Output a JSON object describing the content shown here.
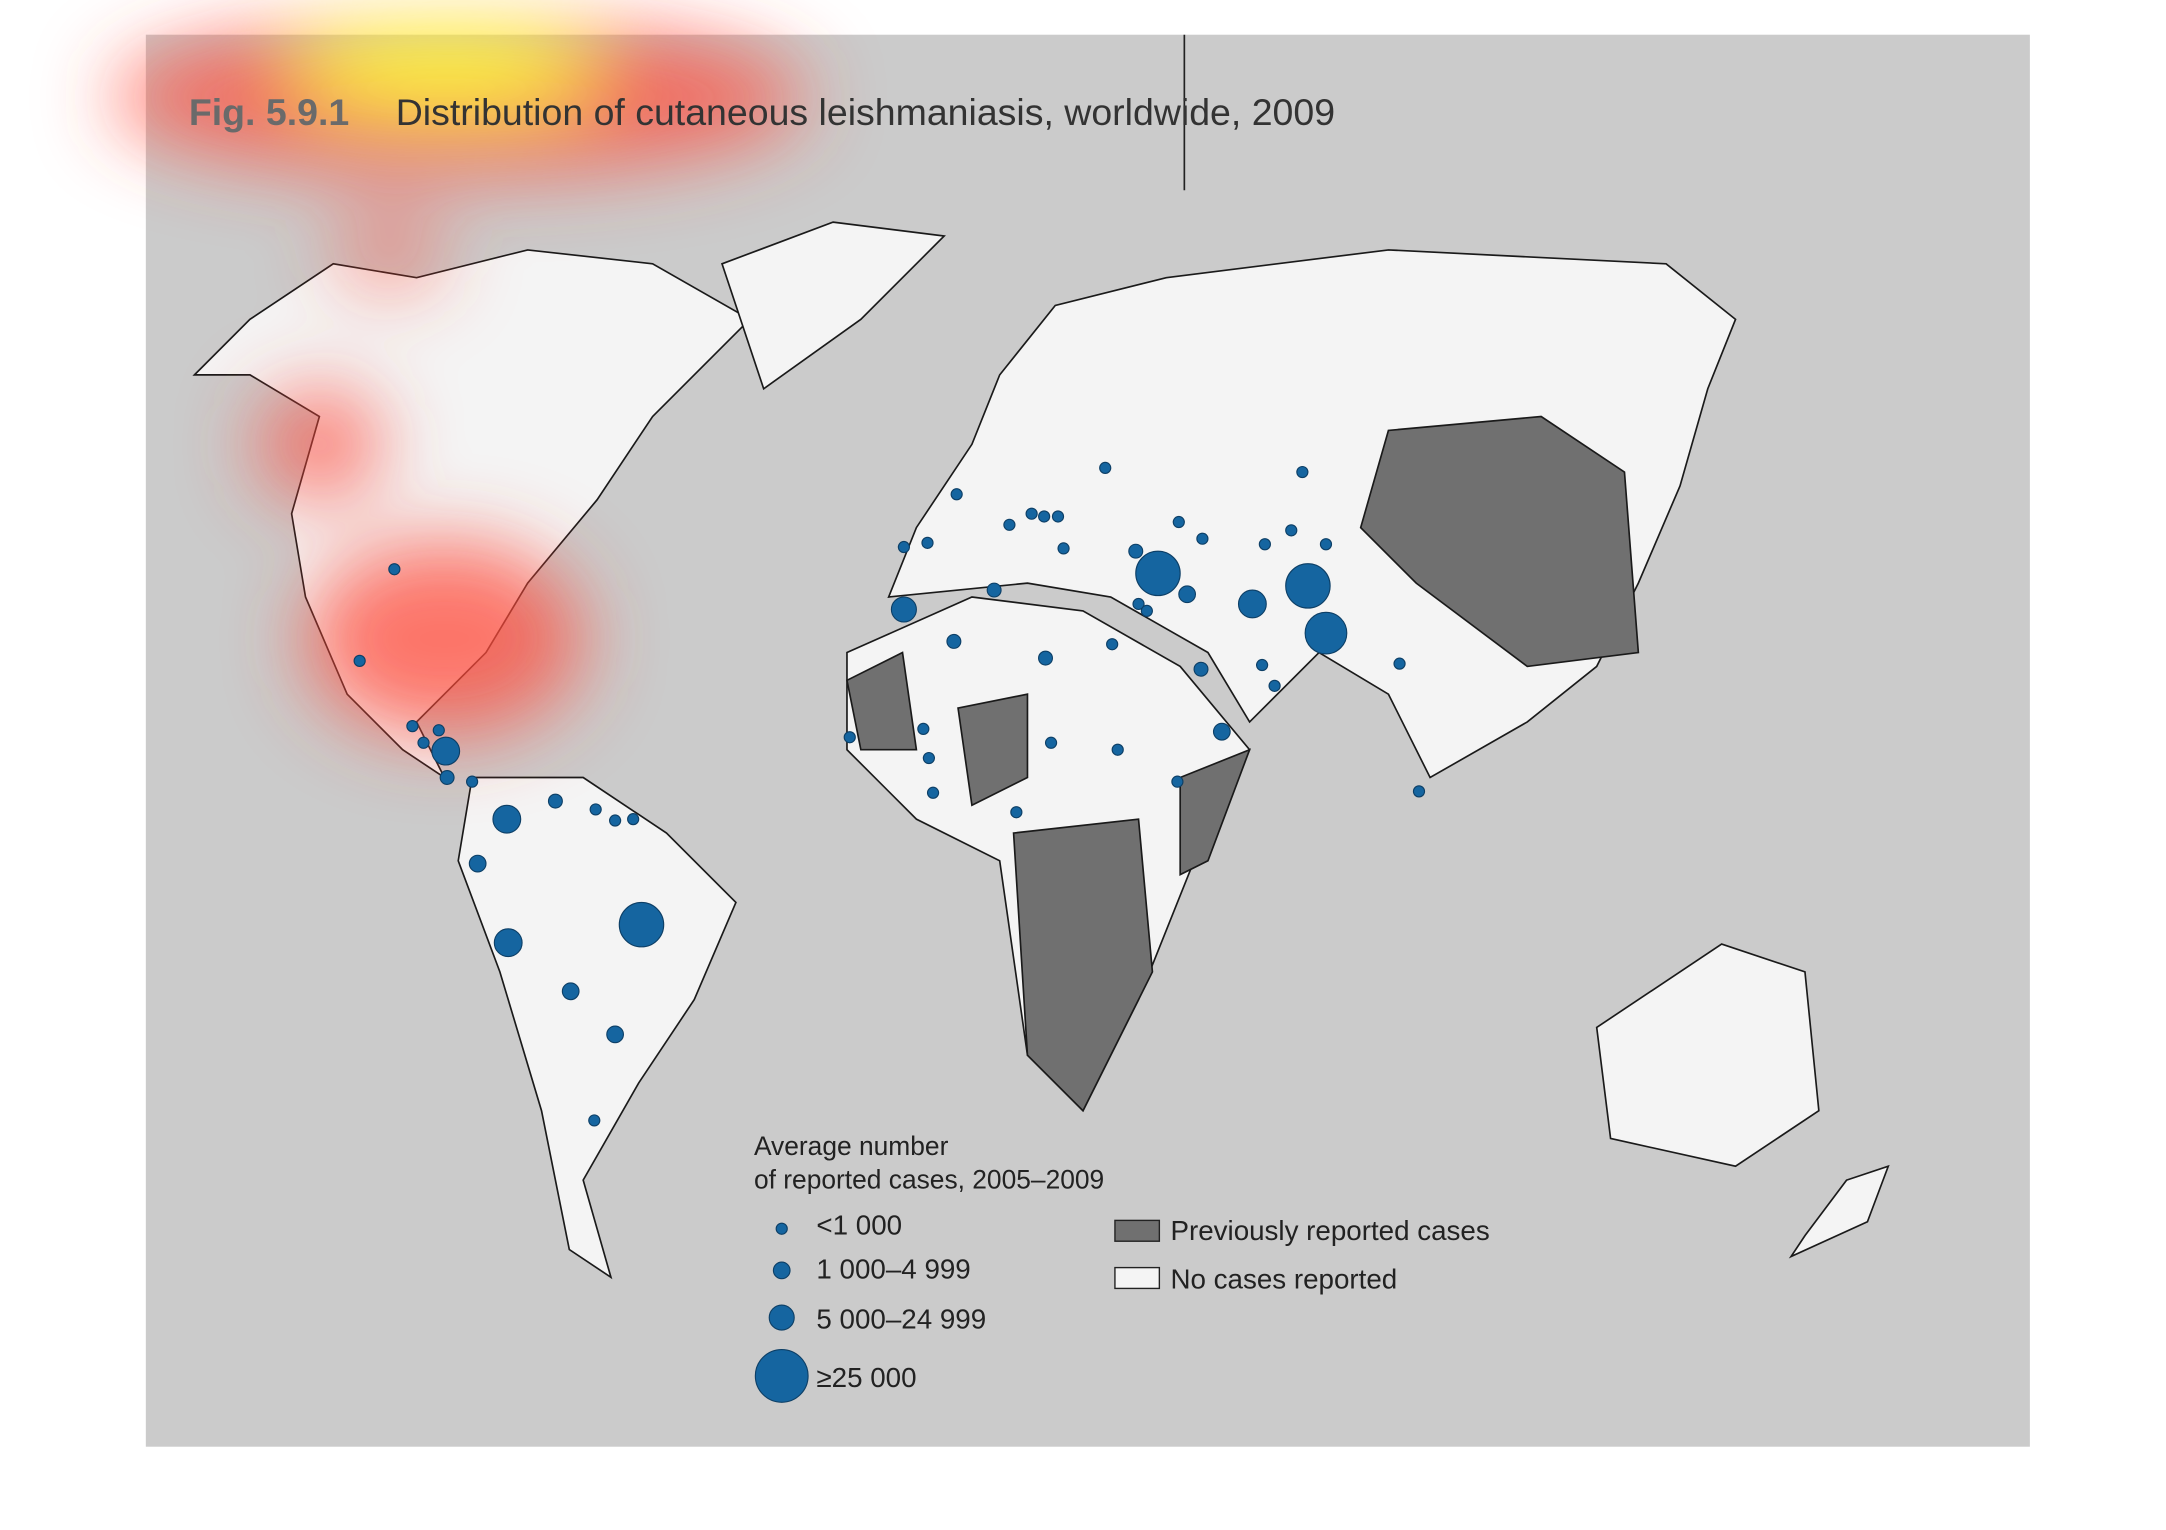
{
  "figure": {
    "label": "Fig. 5.9.1",
    "title": "Distribution of cutaneous leishmaniasis, worldwide, 2009"
  },
  "legend": {
    "title": [
      "Average number",
      "of reported cases, 2005–2009"
    ],
    "sizes": [
      "<1 000",
      "1 000–4 999",
      "5 000–24 999",
      "≥25 000"
    ],
    "areas": [
      "Previously reported cases",
      "No cases reported"
    ]
  }
}
